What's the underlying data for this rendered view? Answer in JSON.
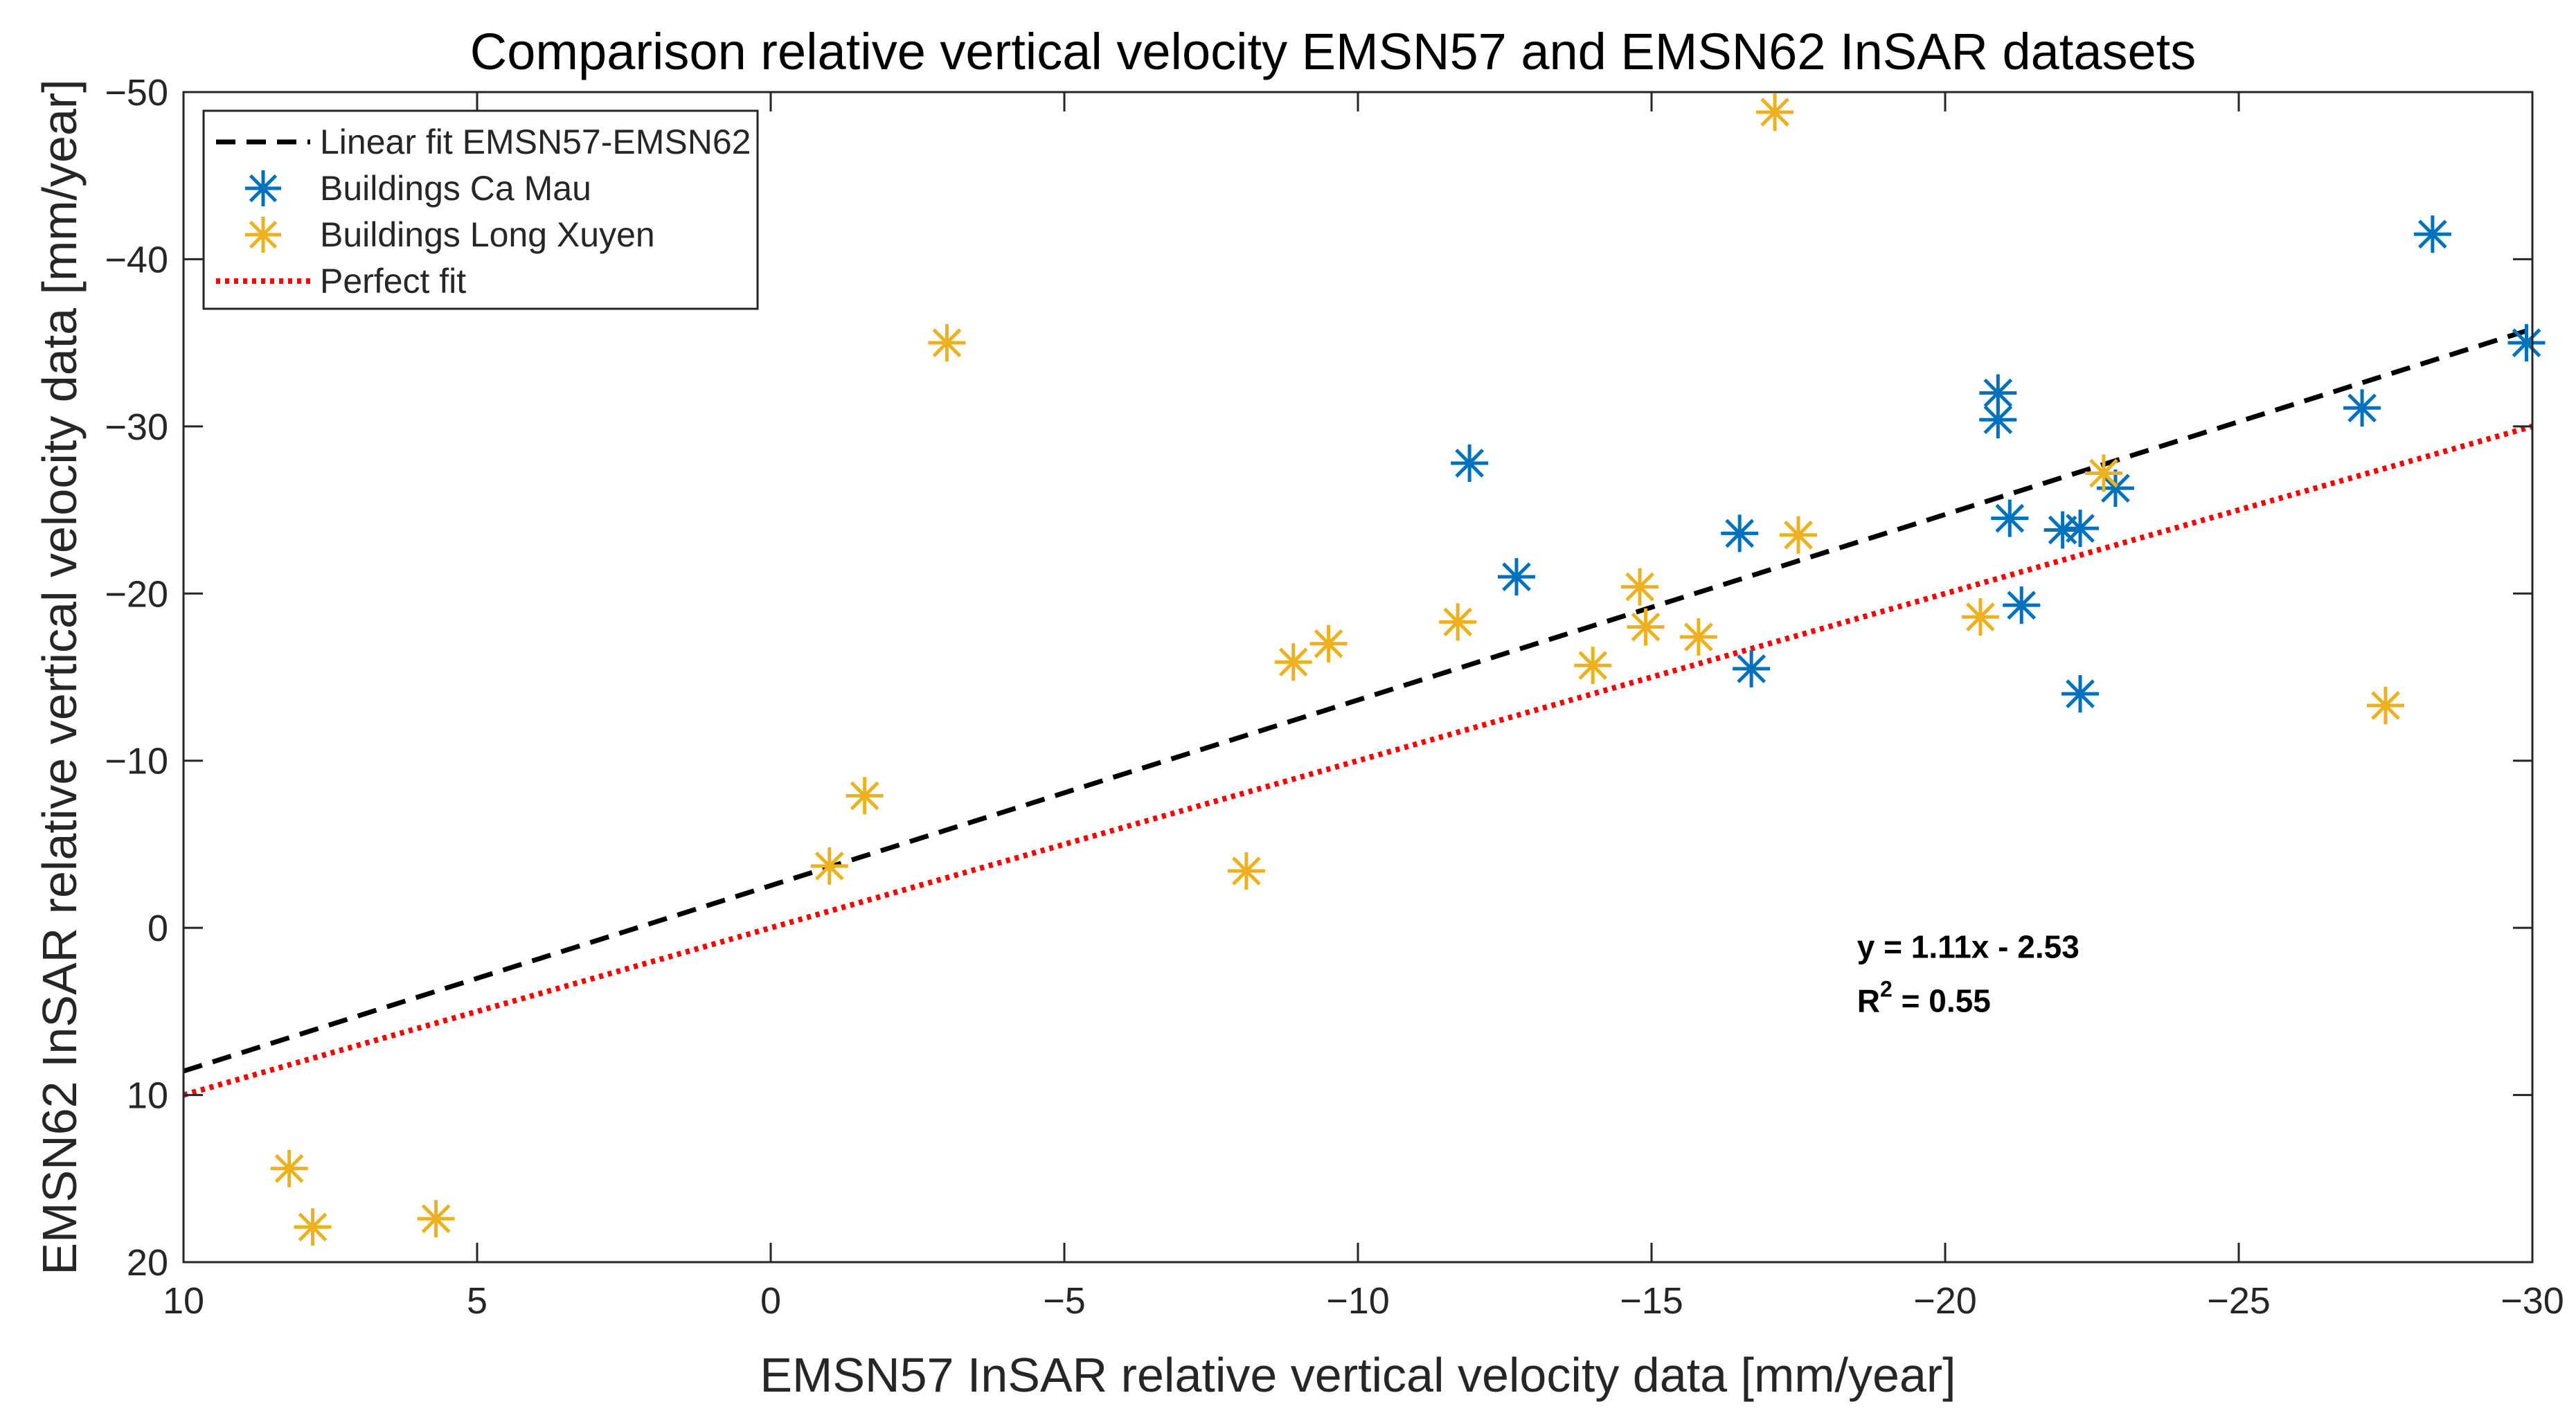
{
  "chart_data": {
    "type": "scatter",
    "title": "Comparison relative vertical velocity EMSN57 and EMSN62 InSAR datasets",
    "xlabel": "EMSN57 InSAR relative vertical velocity data [mm/year]",
    "ylabel": "EMSN62 InSAR relative vertical velocity data [mm/year]",
    "xlim": [
      10,
      -30
    ],
    "ylim": [
      20,
      -50
    ],
    "xticks": [
      10,
      5,
      0,
      -5,
      -10,
      -15,
      -20,
      -25,
      -30
    ],
    "xtick_labels": [
      "10",
      "5",
      "0",
      "−5",
      "−10",
      "−15",
      "−20",
      "−25",
      "−30"
    ],
    "yticks": [
      -50,
      -40,
      -30,
      -20,
      -10,
      0,
      10,
      20
    ],
    "ytick_labels": [
      "−50",
      "−40",
      "−30",
      "−20",
      "−10",
      "0",
      "10",
      "20"
    ],
    "grid": false,
    "legend_position": "top-left",
    "series": [
      {
        "name": "Linear fit EMSN57-EMSN62",
        "kind": "line",
        "style": "dashed",
        "color": "#000000",
        "x": [
          10,
          -30
        ],
        "y": [
          8.57,
          -35.83
        ]
      },
      {
        "name": "Buildings Ca Mau",
        "kind": "scatter",
        "marker": "asterisk",
        "color": "#0072BD",
        "x": [
          -11.9,
          -12.7,
          -16.5,
          -16.7,
          -20.9,
          -20.9,
          -21.1,
          -21.3,
          -22.0,
          -22.3,
          -22.3,
          -22.9,
          -27.1,
          -28.3,
          -29.9
        ],
        "y": [
          -27.8,
          -21.0,
          -23.6,
          -15.5,
          -32.0,
          -30.4,
          -24.5,
          -19.3,
          -23.8,
          -23.9,
          -14.0,
          -26.3,
          -31.1,
          -41.5,
          -35.0
        ]
      },
      {
        "name": "Buildings Long Xuyen",
        "kind": "scatter",
        "marker": "asterisk",
        "color": "#EDB120",
        "x": [
          8.2,
          7.8,
          5.7,
          -1.0,
          -1.6,
          -3.0,
          -8.1,
          -8.9,
          -9.5,
          -11.7,
          -14.0,
          -14.8,
          -14.9,
          -15.8,
          -17.1,
          -17.5,
          -20.6,
          -22.7,
          -27.5
        ],
        "y": [
          14.4,
          17.9,
          17.4,
          -3.7,
          -7.9,
          -35.0,
          -3.4,
          -15.9,
          -17.0,
          -18.3,
          -15.7,
          -20.4,
          -18.0,
          -17.4,
          -48.8,
          -23.5,
          -18.6,
          -27.2,
          -13.3
        ]
      },
      {
        "name": "Perfect fit",
        "kind": "line",
        "style": "dotted",
        "color": "#FF0000",
        "x": [
          10,
          -30
        ],
        "y": [
          10,
          -30
        ]
      }
    ],
    "annotations": {
      "equation": "y = 1.11x - 2.53",
      "r2_prefix": "R",
      "r2_sup": "2",
      "r2_suffix": " = 0.55",
      "anchor_x": -18.5,
      "anchor_y": 1.8
    }
  }
}
